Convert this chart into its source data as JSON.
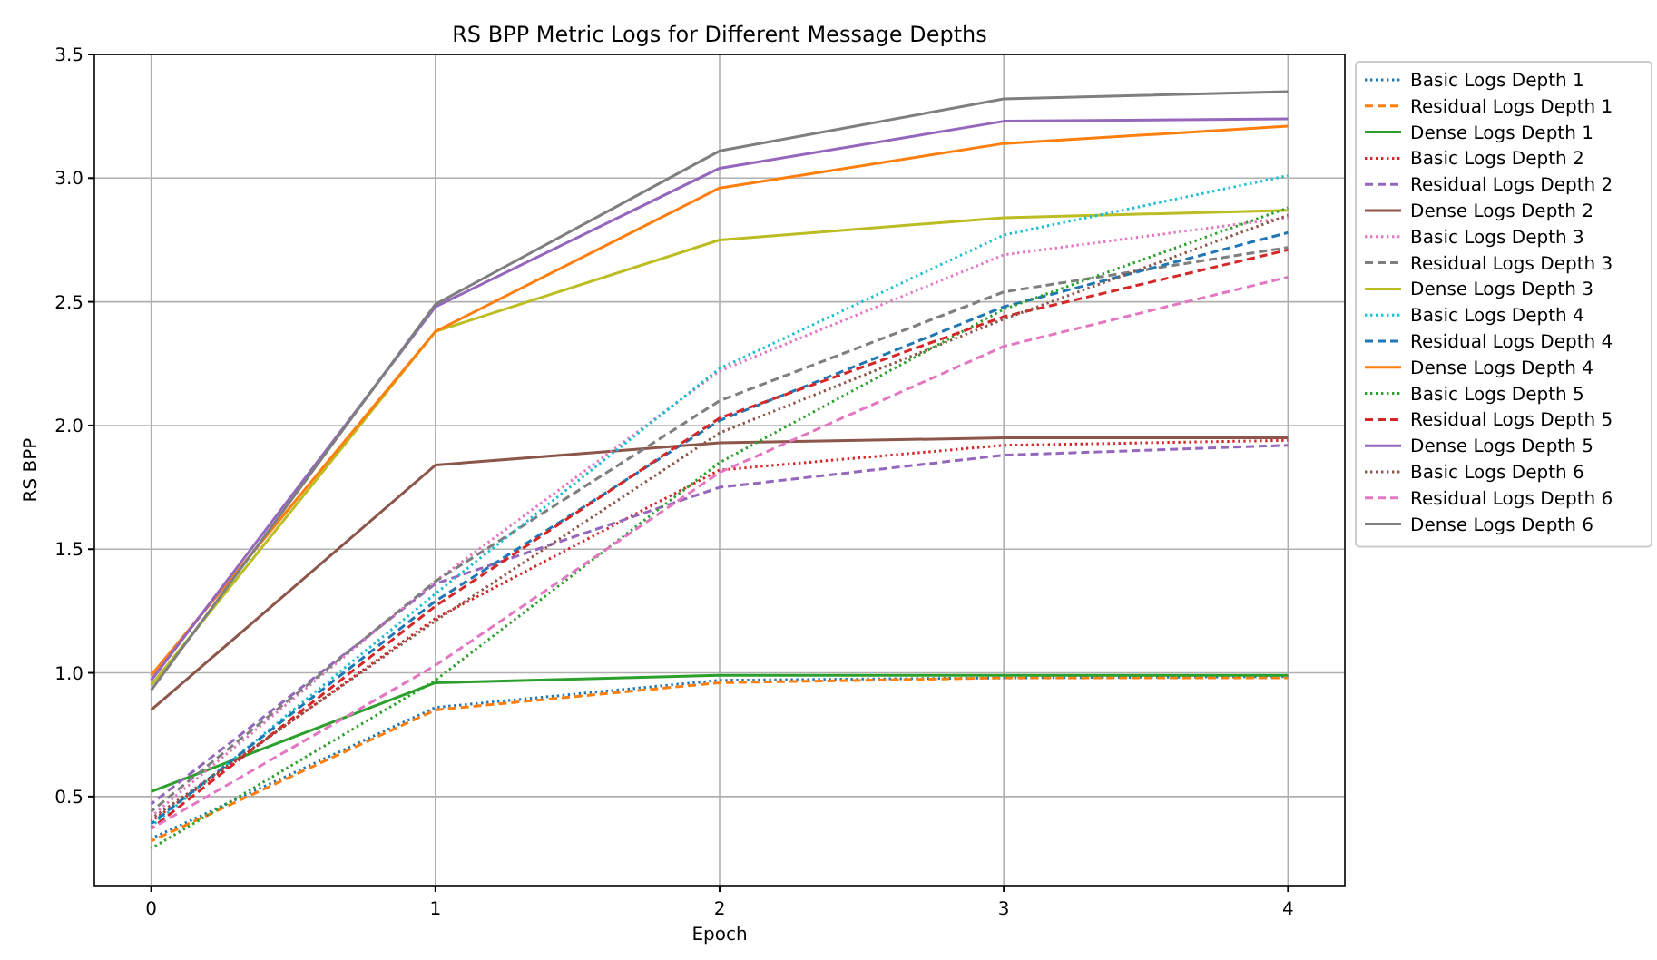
{
  "chart_data": {
    "type": "line",
    "title": "RS BPP Metric Logs for Different Message Depths",
    "xlabel": "Epoch",
    "ylabel": "RS BPP",
    "x": [
      0,
      1,
      2,
      3,
      4
    ],
    "xlim": [
      -0.2,
      4.2
    ],
    "xticks": [
      0,
      1,
      2,
      3,
      4
    ],
    "ylim": [
      0.14,
      3.5
    ],
    "yticks": [
      {
        "value": 0.5,
        "label": "0.5"
      },
      {
        "value": 1,
        "label": "1.0"
      },
      {
        "value": 1.5,
        "label": "1.5"
      },
      {
        "value": 2,
        "label": "2.0"
      },
      {
        "value": 2.5,
        "label": "2.5"
      },
      {
        "value": 3,
        "label": "3.0"
      },
      {
        "value": 3.5,
        "label": "3.5"
      }
    ],
    "grid": true,
    "legend": "right",
    "marker": "none",
    "series": [
      {
        "name": "Basic Logs Depth 1",
        "color": "#1f77b4",
        "line_style": "dotted",
        "values": [
          0.33,
          0.86,
          0.97,
          0.98,
          0.985
        ]
      },
      {
        "name": "Residual Logs Depth 1",
        "color": "#ff7f0e",
        "line_style": "dashed",
        "values": [
          0.32,
          0.85,
          0.96,
          0.98,
          0.98
        ]
      },
      {
        "name": "Dense Logs Depth 1",
        "color": "#2ca02c",
        "line_style": "solid",
        "values": [
          0.52,
          0.96,
          0.99,
          0.99,
          0.99
        ]
      },
      {
        "name": "Basic Logs Depth 2",
        "color": "#d62728",
        "line_style": "dotted",
        "values": [
          0.4,
          1.22,
          1.82,
          1.92,
          1.94
        ]
      },
      {
        "name": "Residual Logs Depth 2",
        "color": "#9467bd",
        "line_style": "dashed",
        "values": [
          0.47,
          1.36,
          1.75,
          1.88,
          1.92
        ]
      },
      {
        "name": "Dense Logs Depth 2",
        "color": "#8c564b",
        "line_style": "solid",
        "values": [
          0.85,
          1.84,
          1.93,
          1.95,
          1.95
        ]
      },
      {
        "name": "Basic Logs Depth 3",
        "color": "#e377c2",
        "line_style": "dotted",
        "values": [
          0.42,
          1.37,
          2.22,
          2.69,
          2.84
        ]
      },
      {
        "name": "Residual Logs Depth 3",
        "color": "#7f7f7f",
        "line_style": "dashed",
        "values": [
          0.44,
          1.37,
          2.1,
          2.54,
          2.72
        ]
      },
      {
        "name": "Dense Logs Depth 3",
        "color": "#bcbd22",
        "line_style": "solid",
        "values": [
          0.95,
          2.38,
          2.75,
          2.84,
          2.87
        ]
      },
      {
        "name": "Basic Logs Depth 4",
        "color": "#17becf",
        "line_style": "dotted",
        "values": [
          0.38,
          1.32,
          2.23,
          2.77,
          3.01
        ]
      },
      {
        "name": "Residual Logs Depth 4",
        "color": "#1f77b4",
        "line_style": "dashed",
        "values": [
          0.39,
          1.29,
          2.02,
          2.48,
          2.78
        ]
      },
      {
        "name": "Dense Logs Depth 4",
        "color": "#ff7f0e",
        "line_style": "solid",
        "values": [
          0.99,
          2.38,
          2.96,
          3.14,
          3.21
        ]
      },
      {
        "name": "Basic Logs Depth 5",
        "color": "#2ca02c",
        "line_style": "dotted",
        "values": [
          0.29,
          0.97,
          1.85,
          2.47,
          2.88
        ]
      },
      {
        "name": "Residual Logs Depth 5",
        "color": "#d62728",
        "line_style": "dashed",
        "values": [
          0.37,
          1.27,
          2.03,
          2.44,
          2.71
        ]
      },
      {
        "name": "Dense Logs Depth 5",
        "color": "#9467bd",
        "line_style": "solid",
        "values": [
          0.97,
          2.48,
          3.04,
          3.23,
          3.24
        ]
      },
      {
        "name": "Basic Logs Depth 6",
        "color": "#8c564b",
        "line_style": "dotted",
        "values": [
          0.41,
          1.21,
          1.97,
          2.43,
          2.85
        ]
      },
      {
        "name": "Residual Logs Depth 6",
        "color": "#e377c2",
        "line_style": "dashed",
        "values": [
          0.37,
          1.03,
          1.81,
          2.32,
          2.6
        ]
      },
      {
        "name": "Dense Logs Depth 6",
        "color": "#7f7f7f",
        "line_style": "solid",
        "values": [
          0.93,
          2.49,
          3.11,
          3.32,
          3.35
        ]
      }
    ]
  }
}
